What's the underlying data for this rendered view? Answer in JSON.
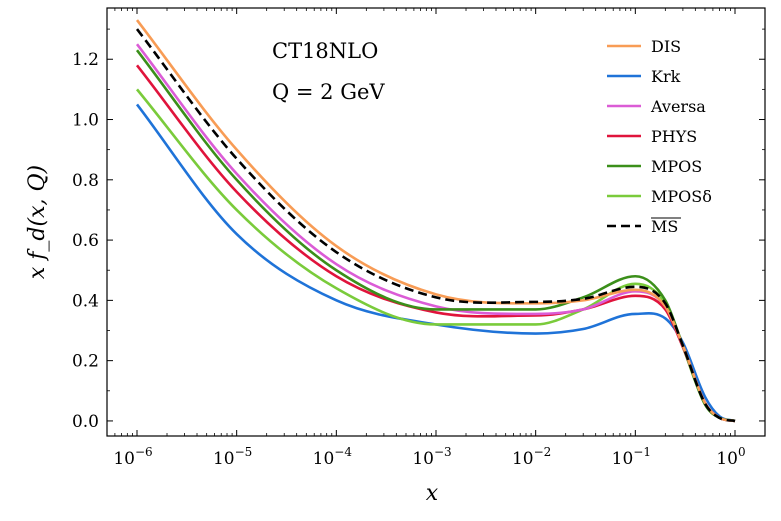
{
  "chart_data": {
    "type": "line",
    "title": "",
    "annotations": [
      "CT18NLO",
      "Q = 2 GeV"
    ],
    "xlabel": "x",
    "ylabel": "x f_d(x, Q)",
    "xscale": "log",
    "xlim": [
      5e-07,
      2
    ],
    "ylim": [
      -0.05,
      1.37
    ],
    "x_ticks": [
      {
        "base": "10",
        "exp": "−6"
      },
      {
        "base": "10",
        "exp": "−5"
      },
      {
        "base": "10",
        "exp": "−4"
      },
      {
        "base": "10",
        "exp": "−3"
      },
      {
        "base": "10",
        "exp": "−2"
      },
      {
        "base": "10",
        "exp": "−1"
      },
      {
        "base": "10",
        "exp": "0"
      }
    ],
    "y_ticks": [
      "0.0",
      "0.2",
      "0.4",
      "0.6",
      "0.8",
      "1.0",
      "1.2"
    ],
    "legend_position": "top-right",
    "x": [
      1e-06,
      1e-05,
      0.0001,
      0.001,
      0.01,
      0.03,
      0.1,
      0.2,
      0.3,
      0.5,
      0.7,
      1.0
    ],
    "series": [
      {
        "name": "DIS",
        "color": "#f89c55",
        "dash": "solid",
        "values": [
          1.33,
          0.9,
          0.58,
          0.42,
          0.39,
          0.4,
          0.435,
          0.38,
          0.25,
          0.06,
          0.01,
          0.0
        ]
      },
      {
        "name": "Krk",
        "color": "#1f73d8",
        "dash": "solid",
        "values": [
          1.05,
          0.62,
          0.4,
          0.32,
          0.29,
          0.305,
          0.355,
          0.34,
          0.26,
          0.08,
          0.015,
          0.0
        ]
      },
      {
        "name": "Aversa",
        "color": "#db5cd6",
        "dash": "solid",
        "values": [
          1.25,
          0.82,
          0.52,
          0.38,
          0.355,
          0.37,
          0.43,
          0.38,
          0.25,
          0.06,
          0.01,
          0.0
        ]
      },
      {
        "name": "PHYS",
        "color": "#e0143c",
        "dash": "solid",
        "values": [
          1.18,
          0.76,
          0.48,
          0.36,
          0.35,
          0.37,
          0.415,
          0.37,
          0.245,
          0.06,
          0.01,
          0.0
        ]
      },
      {
        "name": "MPOS",
        "color": "#3b8f1a",
        "dash": "solid",
        "values": [
          1.23,
          0.8,
          0.5,
          0.37,
          0.37,
          0.41,
          0.48,
          0.4,
          0.25,
          0.055,
          0.01,
          0.0
        ]
      },
      {
        "name": "MPOSδ",
        "color": "#7acb3b",
        "dash": "solid",
        "values": [
          1.1,
          0.7,
          0.44,
          0.32,
          0.32,
          0.37,
          0.455,
          0.39,
          0.245,
          0.055,
          0.01,
          0.0
        ]
      },
      {
        "name": "MS-bar",
        "label_display": "MS",
        "overline": true,
        "color": "#000000",
        "dash": "dashed",
        "values": [
          1.3,
          0.87,
          0.56,
          0.41,
          0.395,
          0.405,
          0.445,
          0.39,
          0.25,
          0.058,
          0.01,
          0.0
        ]
      }
    ]
  }
}
